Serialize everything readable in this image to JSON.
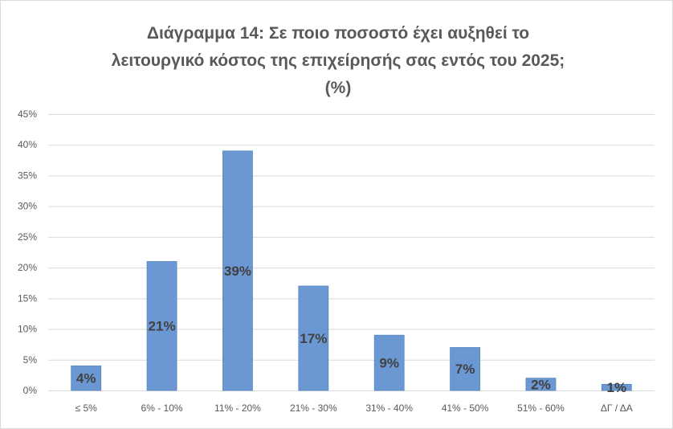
{
  "chart_data": {
    "type": "bar",
    "title_lines": [
      "Διάγραμμα 14: Σε ποιο ποσοστό έχει αυξηθεί το",
      "λειτουργικό κόστος της επιχείρησής σας εντός του 2025;",
      "(%)"
    ],
    "categories": [
      "≤ 5%",
      "6% - 10%",
      "11% - 20%",
      "21% - 30%",
      "31% - 40%",
      "41% - 50%",
      "51% - 60%",
      "ΔΓ / ΔΑ"
    ],
    "values": [
      4,
      21,
      39,
      17,
      9,
      7,
      2,
      1
    ],
    "data_labels": [
      "4%",
      "21%",
      "39%",
      "17%",
      "9%",
      "7%",
      "2%",
      "1%"
    ],
    "ylim": [
      0,
      45
    ],
    "yticks": [
      0,
      5,
      10,
      15,
      20,
      25,
      30,
      35,
      40,
      45
    ],
    "ytick_labels": [
      "0%",
      "5%",
      "10%",
      "15%",
      "20%",
      "25%",
      "30%",
      "35%",
      "40%",
      "45%"
    ],
    "xlabel": "",
    "ylabel": "",
    "grid": true,
    "legend": "none",
    "colors": {
      "bar": "#6b97d2",
      "bar_border": "#5a86c2",
      "grid": "#d9d9d9",
      "text": "#595959",
      "data_label": "#404040"
    }
  }
}
